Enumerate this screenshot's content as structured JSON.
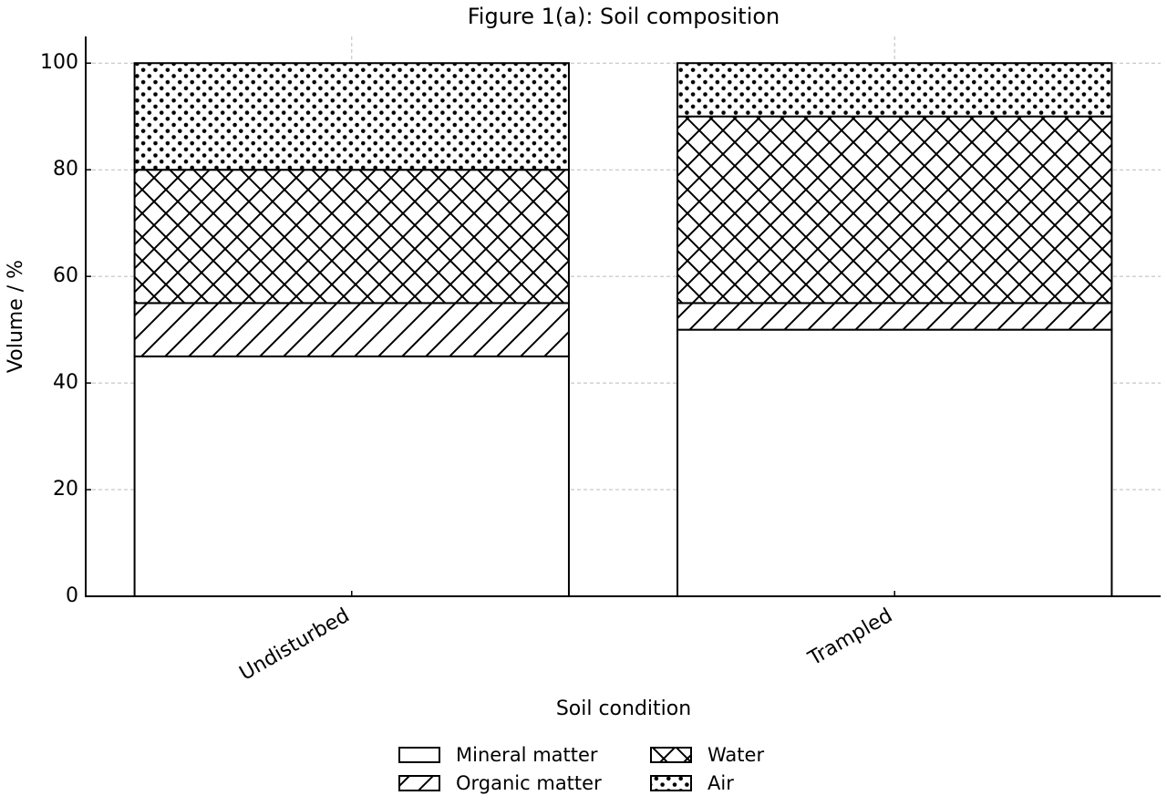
{
  "chart_data": {
    "type": "stacked_bar",
    "title": "Figure 1(a): Soil composition",
    "x_label": "Soil condition",
    "y_label": "Volume / %",
    "categories": [
      "Undisturbed",
      "Trampled"
    ],
    "series": [
      {
        "name": "Mineral matter",
        "color": "#ffffff",
        "hatch": "",
        "values": [
          45,
          50
        ]
      },
      {
        "name": "Organic matter",
        "color": "#ffffff",
        "hatch": "/",
        "values": [
          10,
          5
        ]
      },
      {
        "name": "Water",
        "color": "#ffffff",
        "hatch": "x",
        "values": [
          25,
          35
        ]
      },
      {
        "name": "Air",
        "color": "#ffffff",
        "hatch": ".",
        "values": [
          20,
          10
        ]
      }
    ],
    "ylim": [
      0,
      105
    ],
    "yticks": [
      0,
      20,
      40,
      60,
      80,
      100
    ],
    "grid": true,
    "legend": "bottom"
  }
}
